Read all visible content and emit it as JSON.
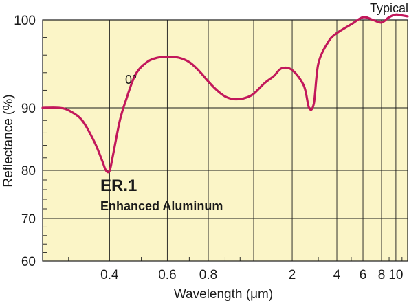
{
  "chart_data": {
    "type": "line",
    "corner_label": "Typical",
    "xlabel": "Wavelength (μm)",
    "ylabel": "Reflectance (%)",
    "x_scale": "piecewise-log",
    "x_ticks": [
      "0.4",
      "0.6",
      "0.8",
      "2",
      "4",
      "6",
      "8",
      "10"
    ],
    "y_ticks": [
      "60",
      "70",
      "80",
      "90",
      "100"
    ],
    "y_scale": "nonlinear",
    "ylim": [
      60,
      100
    ],
    "grid": true,
    "background_color": "#fbf5c7",
    "line_color": "#c2185b",
    "annotations": {
      "angle": "0°",
      "product_code": "ER.1",
      "product_name": "Enhanced Aluminum"
    },
    "series": [
      {
        "x": [
          0.25,
          0.28,
          0.3,
          0.33,
          0.36,
          0.38,
          0.39,
          0.4,
          0.41,
          0.43,
          0.45,
          0.48,
          0.52,
          0.56,
          0.6,
          0.65,
          0.7,
          0.75,
          0.8,
          0.85,
          0.9,
          0.95,
          1.0,
          1.05,
          1.1,
          1.3,
          1.5,
          1.7,
          2.0,
          2.4,
          2.6,
          2.8,
          3.0,
          3.5,
          4.0,
          5.0,
          6.0,
          7.0,
          8.0,
          9.0,
          10.0,
          11.0,
          12.0
        ],
        "y": [
          90.0,
          90.0,
          89.6,
          88.0,
          84.5,
          81.5,
          80.0,
          79.9,
          82.5,
          88.0,
          91.0,
          93.8,
          95.2,
          95.7,
          95.8,
          95.7,
          95.2,
          94.2,
          93.0,
          92.0,
          91.3,
          91.0,
          91.0,
          91.2,
          91.6,
          92.8,
          93.6,
          94.5,
          94.3,
          92.5,
          90.0,
          90.5,
          95.0,
          97.5,
          98.5,
          99.5,
          100.3,
          100.0,
          99.7,
          100.3,
          100.6,
          100.5,
          100.4
        ]
      }
    ]
  }
}
